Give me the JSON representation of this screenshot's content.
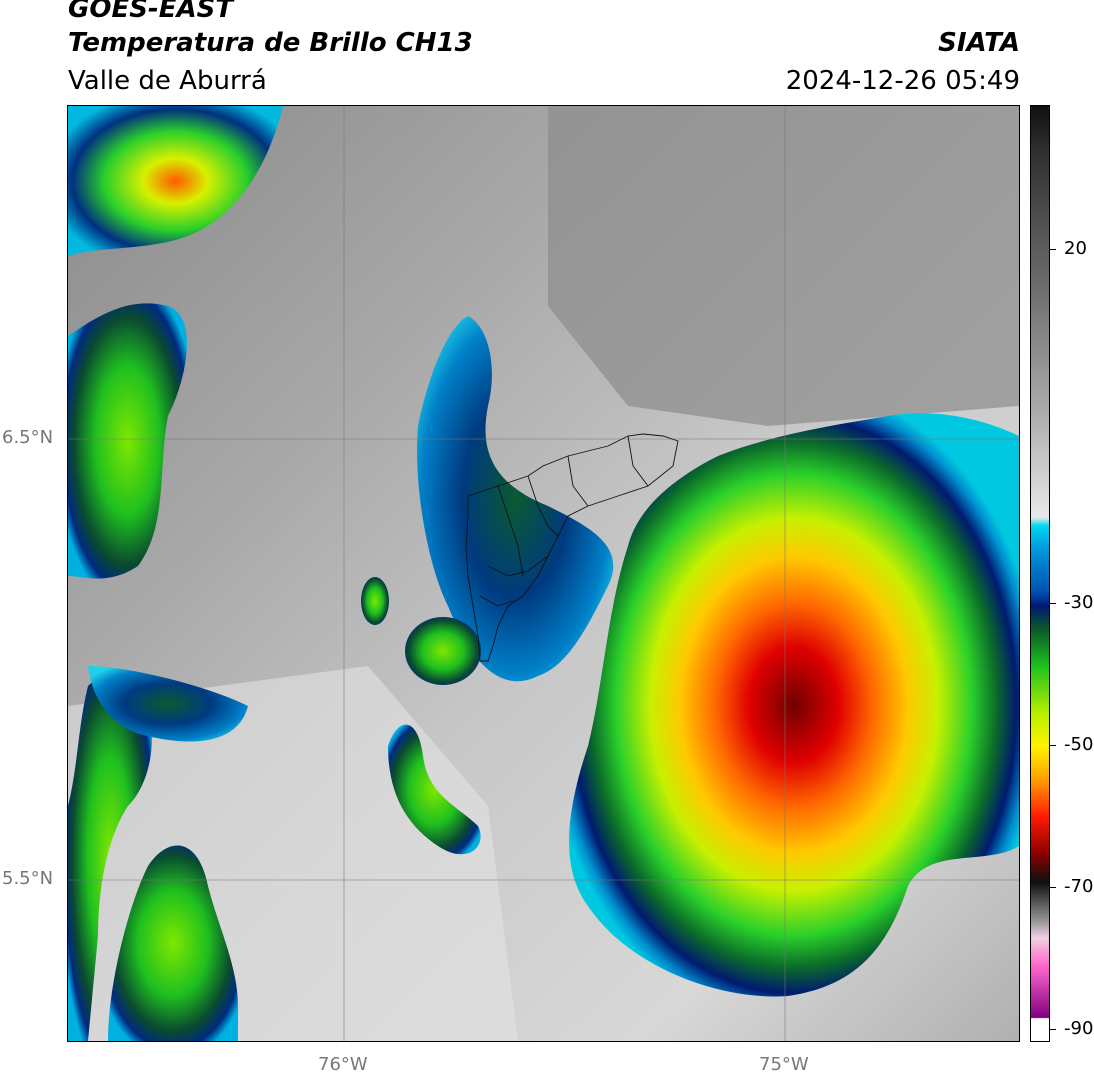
{
  "header": {
    "title_line1": "GOES-EAST",
    "title_line2": "Temperatura de Brillo CH13",
    "title_right": "SIATA",
    "subtitle_left": "Valle de Aburrá",
    "subtitle_right": "2024-12-26 05:49"
  },
  "axes": {
    "lat_labels": [
      "6.5°N",
      "5.5°N"
    ],
    "lon_labels": [
      "76°W",
      "75°W"
    ]
  },
  "colorbar": {
    "tick_labels": [
      "20",
      "-30",
      "-50",
      "-70",
      "-90"
    ],
    "colors": {
      "warm_gray_dark": "#707070",
      "warm_gray_light": "#e8e8e8",
      "cyan": "#00c8e0",
      "blue": "#0050b0",
      "navy": "#001a70",
      "dark_green": "#0a5a28",
      "green": "#1fc21f",
      "lime": "#b8f000",
      "yellow": "#fff200",
      "orange": "#ff8a00",
      "red": "#ff1a00",
      "dark_red": "#700000",
      "black": "#101010",
      "pink": "#ff66cc",
      "purple": "#800080"
    }
  }
}
